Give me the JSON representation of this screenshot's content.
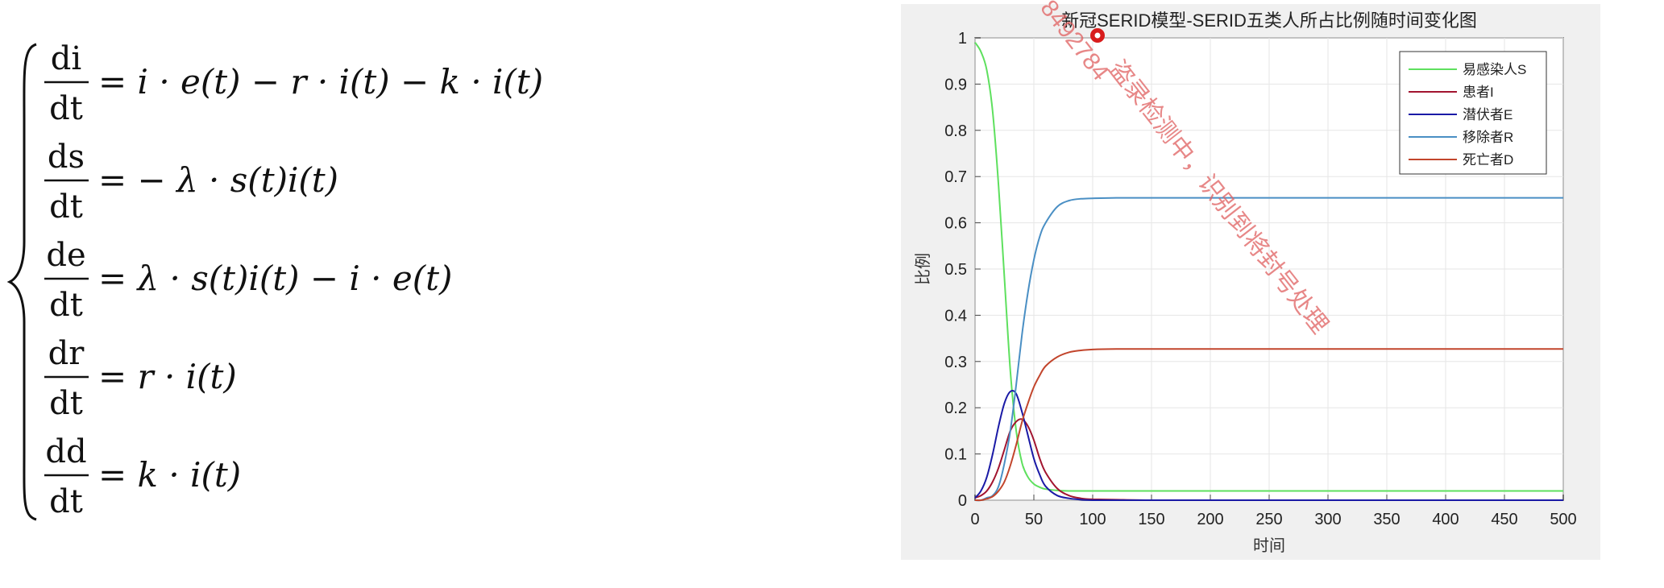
{
  "equations": [
    {
      "num": "di",
      "den": "dt",
      "rhs": "= i · e(t) − r · i(t) − k · i(t)"
    },
    {
      "num": "ds",
      "den": "dt",
      "rhs": "= − λ · s(t)i(t)"
    },
    {
      "num": "de",
      "den": "dt",
      "rhs": "= λ · s(t)i(t) − i · e(t)"
    },
    {
      "num": "dr",
      "den": "dt",
      "rhs": "= r · i(t)"
    },
    {
      "num": "dd",
      "den": "dt",
      "rhs": "= k · i(t)"
    }
  ],
  "watermark": {
    "text_prefix": "8492784",
    "text": "盗录检测中，识别到将封号处理",
    "dot_color": "#d81b1b"
  },
  "colors": {
    "grid": "#e6e6e6",
    "frame_bg": "#f0f0f0",
    "S": "#5ee05e",
    "I": "#a2142f",
    "E": "#1a1aa6",
    "R": "#4a8fc4",
    "D": "#c2452c"
  },
  "chart_data": {
    "type": "line",
    "title": "新冠SERID模型-SERID五类人所占比例随时间变化图",
    "xlabel": "时间",
    "ylabel": "比例",
    "xlim": [
      0,
      500
    ],
    "ylim": [
      0,
      1
    ],
    "xticks": [
      "0",
      "50",
      "100",
      "150",
      "200",
      "250",
      "300",
      "350",
      "400",
      "450",
      "500"
    ],
    "yticks": [
      "0",
      "0.1",
      "0.2",
      "0.3",
      "0.4",
      "0.5",
      "0.6",
      "0.7",
      "0.8",
      "0.9",
      "1"
    ],
    "grid": true,
    "legend_position": "top-right",
    "x": [
      0,
      5,
      10,
      15,
      20,
      25,
      30,
      35,
      40,
      45,
      50,
      55,
      60,
      70,
      80,
      90,
      100,
      120,
      150,
      200,
      300,
      400,
      500
    ],
    "series": [
      {
        "name": "易感染人S",
        "key": "S",
        "values": [
          0.99,
          0.97,
          0.93,
          0.84,
          0.68,
          0.48,
          0.28,
          0.15,
          0.08,
          0.05,
          0.035,
          0.028,
          0.024,
          0.021,
          0.02,
          0.02,
          0.02,
          0.02,
          0.02,
          0.02,
          0.02,
          0.02,
          0.02
        ]
      },
      {
        "name": "患者I",
        "key": "I",
        "values": [
          0.005,
          0.01,
          0.02,
          0.04,
          0.07,
          0.11,
          0.15,
          0.17,
          0.175,
          0.16,
          0.13,
          0.09,
          0.06,
          0.025,
          0.01,
          0.004,
          0.002,
          0.001,
          0.0,
          0.0,
          0.0,
          0.0,
          0.0
        ]
      },
      {
        "name": "潜伏者E",
        "key": "E",
        "values": [
          0.005,
          0.02,
          0.05,
          0.1,
          0.16,
          0.21,
          0.235,
          0.23,
          0.19,
          0.14,
          0.09,
          0.055,
          0.03,
          0.01,
          0.004,
          0.001,
          0.0,
          0.0,
          0.0,
          0.0,
          0.0,
          0.0,
          0.0
        ]
      },
      {
        "name": "移除者R",
        "key": "R",
        "values": [
          0.0,
          0.0,
          0.005,
          0.01,
          0.03,
          0.08,
          0.15,
          0.25,
          0.36,
          0.45,
          0.52,
          0.57,
          0.6,
          0.635,
          0.648,
          0.652,
          0.653,
          0.654,
          0.654,
          0.654,
          0.654,
          0.654,
          0.654
        ]
      },
      {
        "name": "死亡者D",
        "key": "D",
        "values": [
          0.0,
          0.0,
          0.003,
          0.008,
          0.02,
          0.04,
          0.075,
          0.12,
          0.17,
          0.21,
          0.245,
          0.27,
          0.29,
          0.31,
          0.32,
          0.324,
          0.326,
          0.327,
          0.327,
          0.327,
          0.327,
          0.327,
          0.327
        ]
      }
    ]
  }
}
